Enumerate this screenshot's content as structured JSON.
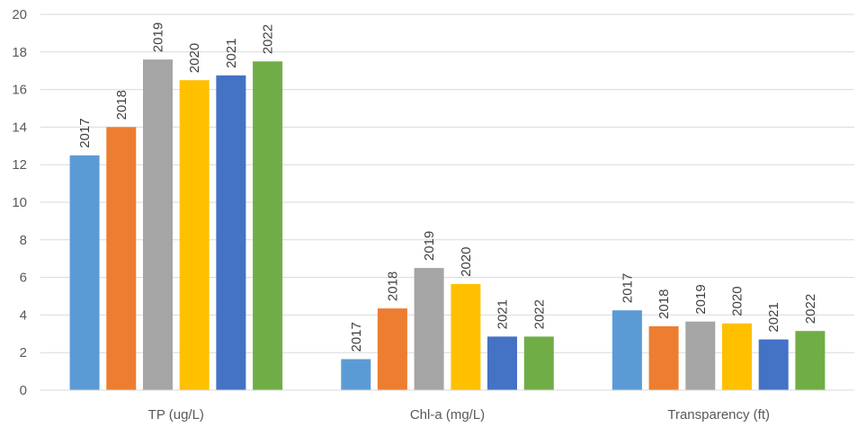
{
  "chart_data": {
    "type": "bar",
    "categories": [
      "TP (ug/L)",
      "Chl-a (mg/L)",
      "Transparency (ft)"
    ],
    "series": [
      {
        "name": "2017",
        "values": [
          12.5,
          1.65,
          4.25
        ],
        "color": "#5B9BD5"
      },
      {
        "name": "2018",
        "values": [
          14.0,
          4.35,
          3.4
        ],
        "color": "#ED7D31"
      },
      {
        "name": "2019",
        "values": [
          17.6,
          6.5,
          3.65
        ],
        "color": "#A5A5A5"
      },
      {
        "name": "2020",
        "values": [
          16.5,
          5.65,
          3.55
        ],
        "color": "#FFC000"
      },
      {
        "name": "2021",
        "values": [
          16.75,
          2.85,
          2.7
        ],
        "color": "#4472C4"
      },
      {
        "name": "2022",
        "values": [
          17.5,
          2.85,
          3.15
        ],
        "color": "#70AD47"
      }
    ],
    "yticks": [
      "0",
      "2",
      "4",
      "6",
      "8",
      "10",
      "12",
      "14",
      "16",
      "18",
      "20"
    ],
    "ylim": [
      0,
      20
    ],
    "grid": true,
    "legend": "none",
    "data_labels": "series name above each bar, rotated vertical"
  }
}
